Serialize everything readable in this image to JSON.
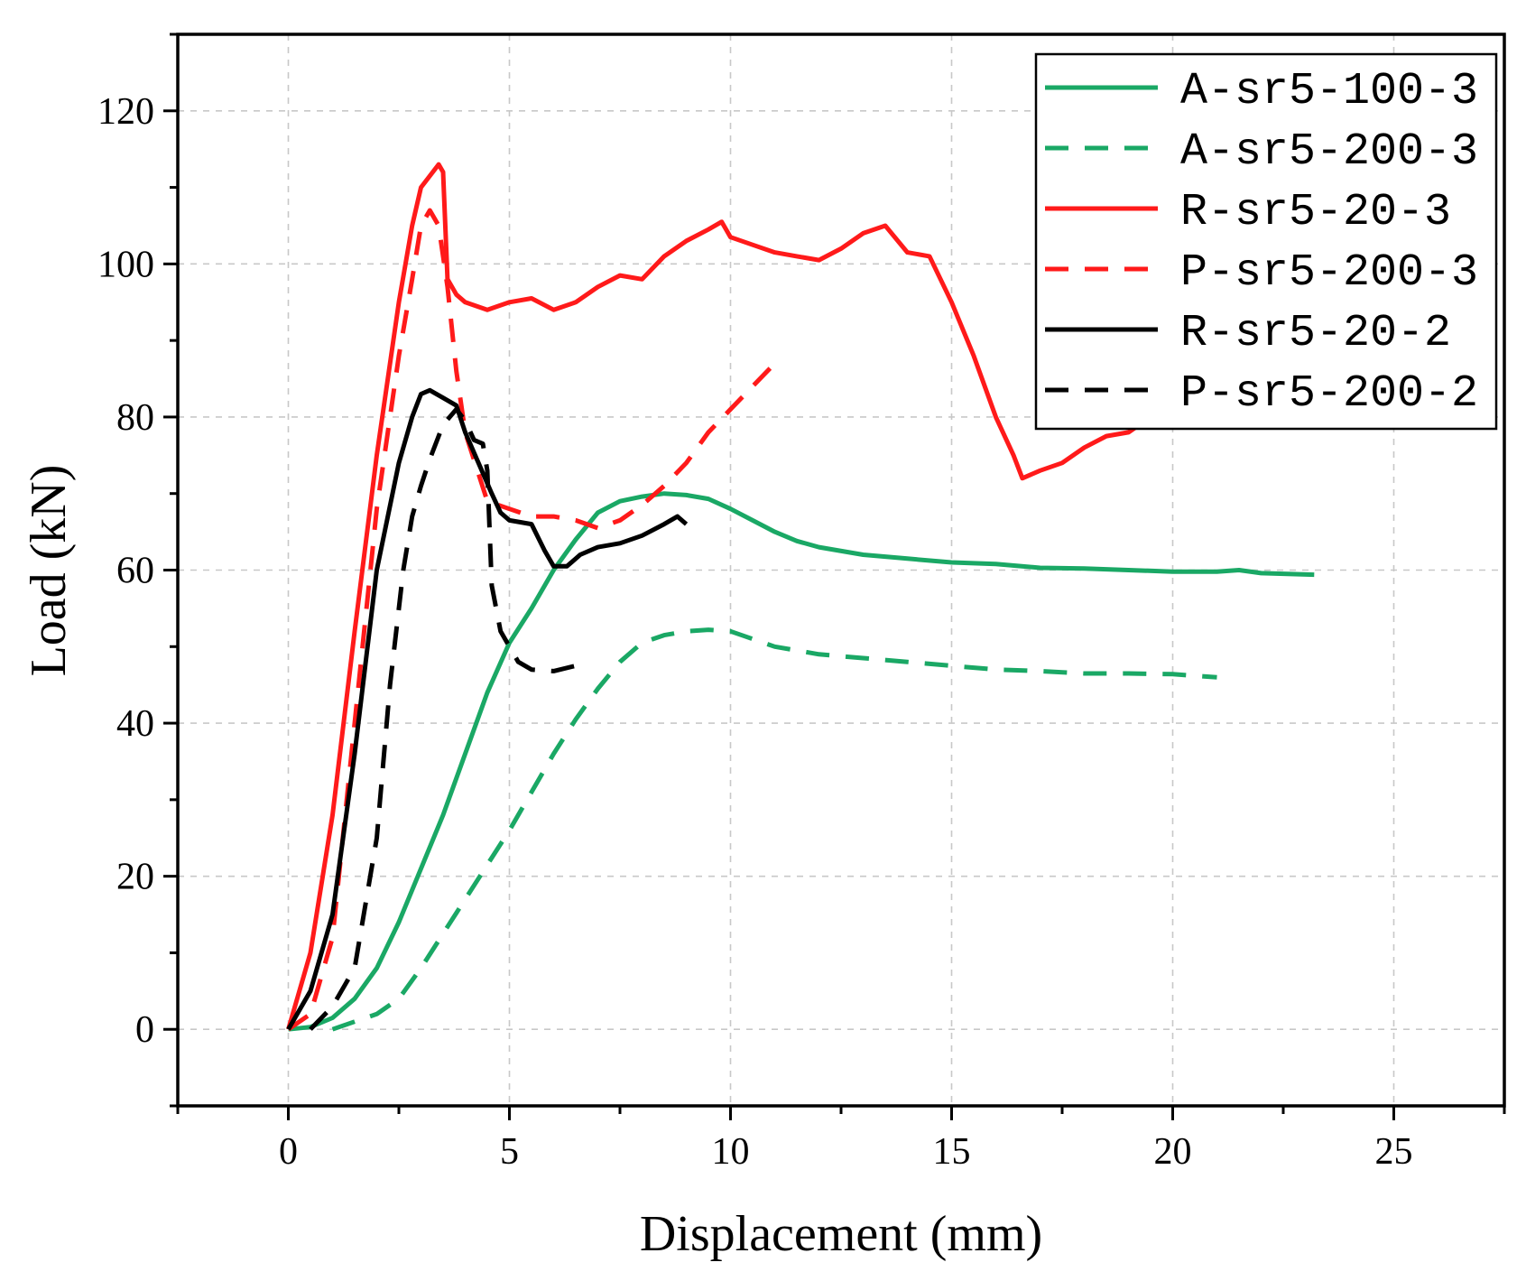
{
  "chart_data": {
    "type": "line",
    "title": "",
    "xlabel": "Displacement (mm)",
    "ylabel": "Load (kN)",
    "xlim": [
      -2.5,
      27.5
    ],
    "ylim": [
      -10,
      130
    ],
    "xticks": [
      0,
      5,
      10,
      15,
      20,
      25
    ],
    "yticks": [
      0,
      20,
      40,
      60,
      80,
      100,
      120
    ],
    "grid": true,
    "legend_position": "top-right",
    "series": [
      {
        "name": "A-sr5-100-3",
        "color": "#1aa865",
        "dash": "solid",
        "x": [
          0,
          0.5,
          1.0,
          1.5,
          2.0,
          2.5,
          3.0,
          3.5,
          4.0,
          4.5,
          5.0,
          5.5,
          6.0,
          6.5,
          7.0,
          7.5,
          8.0,
          8.5,
          9.0,
          9.5,
          10.0,
          10.5,
          11.0,
          11.5,
          12.0,
          13.0,
          14.0,
          15.0,
          16.0,
          17.0,
          18.0,
          19.0,
          20.0,
          21.0,
          21.5,
          22.0,
          23.2
        ],
        "y": [
          0,
          0.3,
          1.5,
          4.0,
          8.0,
          14.0,
          21.0,
          28.0,
          36.0,
          44.0,
          50.5,
          55.0,
          60.0,
          64.0,
          67.5,
          69.0,
          69.6,
          70.0,
          69.8,
          69.3,
          68.0,
          66.5,
          65.0,
          63.8,
          63.0,
          62.0,
          61.5,
          61.0,
          60.8,
          60.3,
          60.2,
          60.0,
          59.8,
          59.8,
          60.0,
          59.6,
          59.4
        ]
      },
      {
        "name": "A-sr5-200-3",
        "color": "#1aa865",
        "dash": "dashed",
        "x": [
          1.0,
          1.5,
          2.0,
          2.5,
          3.0,
          3.5,
          4.0,
          4.5,
          5.0,
          5.5,
          6.0,
          6.5,
          7.0,
          7.5,
          8.0,
          8.5,
          9.0,
          9.5,
          10.0,
          10.5,
          11.0,
          11.5,
          12.0,
          13.0,
          14.0,
          15.0,
          16.0,
          17.0,
          18.0,
          19.0,
          20.0,
          21.0
        ],
        "y": [
          0,
          1.0,
          2.0,
          4.0,
          8.0,
          12.5,
          17.0,
          21.5,
          26.0,
          31.0,
          36.0,
          40.5,
          44.5,
          48.0,
          50.5,
          51.5,
          52.0,
          52.2,
          52.0,
          51.0,
          50.0,
          49.5,
          49.0,
          48.5,
          48.0,
          47.5,
          47.0,
          46.8,
          46.5,
          46.5,
          46.4,
          46.0
        ]
      },
      {
        "name": "R-sr5-20-3",
        "color": "#ff1a1a",
        "dash": "solid",
        "x": [
          0,
          0.5,
          1.0,
          1.5,
          2.0,
          2.5,
          2.8,
          3.0,
          3.2,
          3.4,
          3.5,
          3.6,
          3.8,
          4.0,
          4.5,
          5.0,
          5.5,
          6.0,
          6.5,
          7.0,
          7.5,
          8.0,
          8.5,
          9.0,
          9.5,
          9.8,
          10.0,
          10.5,
          11.0,
          11.5,
          12.0,
          12.5,
          13.0,
          13.5,
          14.0,
          14.5,
          15.0,
          15.5,
          16.0,
          16.4,
          16.6,
          17.0,
          17.5,
          18.0,
          18.5,
          19.0,
          19.5
        ],
        "y": [
          0,
          10.0,
          28.0,
          52.0,
          75.0,
          95.0,
          105.0,
          110.0,
          111.5,
          113.0,
          112.0,
          98.0,
          96.0,
          95.0,
          94.0,
          95.0,
          95.5,
          94.0,
          95.0,
          97.0,
          98.5,
          98.0,
          101.0,
          103.0,
          104.5,
          105.5,
          103.5,
          102.5,
          101.5,
          101.0,
          100.5,
          102.0,
          104.0,
          105.0,
          101.5,
          101.0,
          95.0,
          88.0,
          80.0,
          75.0,
          72.0,
          73.0,
          74.0,
          76.0,
          77.5,
          78.0,
          80.0
        ]
      },
      {
        "name": "P-sr5-200-3",
        "color": "#ff1a1a",
        "dash": "dashed",
        "x": [
          0,
          0.5,
          1.0,
          1.5,
          2.0,
          2.5,
          2.8,
          3.0,
          3.2,
          3.4,
          3.6,
          3.8,
          4.0,
          4.5,
          5.0,
          5.5,
          6.0,
          6.5,
          7.0,
          7.5,
          8.0,
          8.5,
          9.0,
          9.5,
          10.0,
          10.5,
          11.0
        ],
        "y": [
          0,
          2.0,
          12.0,
          40.0,
          68.0,
          88.0,
          98.0,
          105.0,
          107.0,
          105.0,
          97.0,
          86.0,
          78.0,
          69.0,
          68.0,
          67.0,
          67.0,
          66.5,
          65.5,
          66.5,
          68.5,
          71.0,
          74.0,
          78.0,
          81.0,
          84.0,
          87.0
        ]
      },
      {
        "name": "R-sr5-20-2",
        "color": "#000000",
        "dash": "solid",
        "x": [
          0,
          0.5,
          1.0,
          1.5,
          2.0,
          2.5,
          2.8,
          3.0,
          3.2,
          3.5,
          3.8,
          4.0,
          4.3,
          4.6,
          4.8,
          5.0,
          5.5,
          5.8,
          6.0,
          6.3,
          6.6,
          7.0,
          7.5,
          8.0,
          8.5,
          8.8,
          9.0
        ],
        "y": [
          0,
          5.0,
          15.0,
          36.0,
          60.0,
          74.0,
          80.0,
          83.0,
          83.5,
          82.5,
          81.5,
          78.0,
          74.0,
          70.0,
          67.5,
          66.5,
          66.0,
          62.5,
          60.5,
          60.5,
          62.0,
          63.0,
          63.5,
          64.5,
          66.0,
          67.0,
          66.0
        ]
      },
      {
        "name": "P-sr5-200-2",
        "color": "#000000",
        "dash": "dashed",
        "x": [
          0.5,
          1.0,
          1.5,
          2.0,
          2.3,
          2.6,
          2.8,
          3.0,
          3.2,
          3.5,
          3.8,
          4.0,
          4.2,
          4.4,
          4.5,
          4.6,
          4.8,
          5.0,
          5.2,
          5.5,
          6.0,
          6.5
        ],
        "y": [
          0,
          3.0,
          8.0,
          25.0,
          45.0,
          60.0,
          67.0,
          71.0,
          74.5,
          79.0,
          81.0,
          79.5,
          77.0,
          76.5,
          73.0,
          58.0,
          52.0,
          50.0,
          48.0,
          47.0,
          46.8,
          47.5
        ]
      }
    ]
  }
}
